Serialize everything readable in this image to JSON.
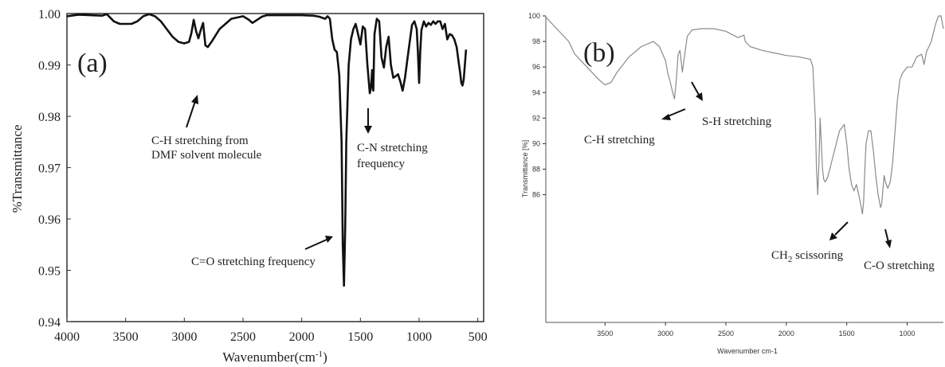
{
  "chart_data": [
    {
      "type": "line",
      "panel_label": "(a)",
      "xlabel": "Wavenumber(cm",
      "xlabel_sup": "-1",
      "xlabel_tail": ")",
      "ylabel": "%Transmittance",
      "xlim": [
        4000,
        450
      ],
      "ylim": [
        0.94,
        1.001
      ],
      "xticks": [
        {
          "v": 4000,
          "label": "4000"
        },
        {
          "v": 3500,
          "label": "3500"
        },
        {
          "v": 3000,
          "label": "3000"
        },
        {
          "v": 2500,
          "label": "2500"
        },
        {
          "v": 2000,
          "label": "2000"
        },
        {
          "v": 1500,
          "label": "1500"
        },
        {
          "v": 1000,
          "label": "1000"
        },
        {
          "v": 500,
          "label": "500"
        }
      ],
      "yticks": [
        {
          "v": 1.0,
          "label": "1.00"
        },
        {
          "v": 0.99,
          "label": "0.99"
        },
        {
          "v": 0.98,
          "label": "0.98"
        },
        {
          "v": 0.97,
          "label": "0.97"
        },
        {
          "v": 0.96,
          "label": "0.96"
        },
        {
          "v": 0.95,
          "label": "0.95"
        },
        {
          "v": 0.94,
          "label": "0.94"
        }
      ],
      "grid": false,
      "line_color": "#111111",
      "series": [
        {
          "x": [
            4000,
            3900,
            3800,
            3700,
            3660,
            3600,
            3550,
            3500,
            3450,
            3400,
            3350,
            3300,
            3250,
            3200,
            3150,
            3100,
            3050,
            3000,
            2960,
            2940,
            2920,
            2900,
            2880,
            2860,
            2840,
            2820,
            2800,
            2760,
            2700,
            2600,
            2500,
            2450,
            2420,
            2380,
            2340,
            2300,
            2200,
            2100,
            2000,
            1900,
            1850,
            1800,
            1780,
            1760,
            1740,
            1720,
            1700,
            1680,
            1660,
            1650,
            1640,
            1630,
            1620,
            1600,
            1580,
            1560,
            1540,
            1520,
            1500,
            1480,
            1460,
            1440,
            1420,
            1410,
            1400,
            1390,
            1380,
            1360,
            1340,
            1320,
            1300,
            1280,
            1260,
            1240,
            1220,
            1200,
            1180,
            1160,
            1140,
            1120,
            1100,
            1080,
            1060,
            1040,
            1020,
            1010,
            1000,
            990,
            980,
            960,
            940,
            920,
            900,
            880,
            860,
            840,
            820,
            800,
            780,
            760,
            740,
            720,
            700,
            680,
            660,
            650,
            640,
            630,
            620,
            600
          ],
          "y": [
            0.9995,
            0.9998,
            0.9997,
            0.9996,
            0.9999,
            0.9985,
            0.998,
            0.998,
            0.998,
            0.9985,
            0.9995,
            0.9999,
            0.9995,
            0.9985,
            0.997,
            0.9955,
            0.9945,
            0.9942,
            0.9945,
            0.9962,
            0.9988,
            0.9966,
            0.9952,
            0.9968,
            0.9982,
            0.9938,
            0.9935,
            0.9948,
            0.997,
            0.999,
            0.9995,
            0.9988,
            0.9982,
            0.9988,
            0.9994,
            0.9997,
            0.9997,
            0.9997,
            0.9997,
            0.9996,
            0.9994,
            0.999,
            0.9995,
            0.999,
            0.995,
            0.993,
            0.9925,
            0.988,
            0.975,
            0.955,
            0.947,
            0.958,
            0.975,
            0.99,
            0.995,
            0.997,
            0.998,
            0.996,
            0.994,
            0.9975,
            0.997,
            0.99,
            0.9845,
            0.9855,
            0.989,
            0.985,
            0.996,
            0.999,
            0.9985,
            0.9915,
            0.9895,
            0.9935,
            0.9955,
            0.99,
            0.9875,
            0.9878,
            0.9882,
            0.9868,
            0.985,
            0.9875,
            0.991,
            0.9945,
            0.9978,
            0.9985,
            0.997,
            0.9925,
            0.9865,
            0.9925,
            0.9968,
            0.9985,
            0.9975,
            0.9982,
            0.9978,
            0.9985,
            0.998,
            0.9985,
            0.9985,
            0.997,
            0.998,
            0.995,
            0.996,
            0.9958,
            0.995,
            0.9935,
            0.99,
            0.9885,
            0.9865,
            0.986,
            0.9872,
            0.993
          ]
        }
      ],
      "annotations": [
        {
          "lines": [
            "C-H stretching from",
            "DMF solvent molecule"
          ]
        },
        {
          "lines": [
            "C-N stretching",
            "frequency"
          ]
        },
        {
          "lines": [
            "C=O stretching frequency"
          ]
        }
      ]
    },
    {
      "type": "line",
      "panel_label": "(b)",
      "xlabel": "Wavenumber cm-1",
      "ylabel": "Transmittance [%]",
      "xlim": [
        3990,
        700
      ],
      "ylim": [
        76,
        100
      ],
      "xticks": [
        {
          "v": 3500,
          "label": "3500"
        },
        {
          "v": 3000,
          "label": "3000"
        },
        {
          "v": 2500,
          "label": "2500"
        },
        {
          "v": 2000,
          "label": "2000"
        },
        {
          "v": 1500,
          "label": "1500"
        },
        {
          "v": 1000,
          "label": "1000"
        }
      ],
      "yticks": [
        {
          "v": 100,
          "label": "100"
        },
        {
          "v": 98,
          "label": "98"
        },
        {
          "v": 96,
          "label": "96"
        },
        {
          "v": 94,
          "label": "94"
        },
        {
          "v": 92,
          "label": "92"
        },
        {
          "v": 90,
          "label": "90"
        },
        {
          "v": 88,
          "label": "88"
        },
        {
          "v": 86,
          "label": "86"
        }
      ],
      "grid": false,
      "line_color": "#888888",
      "series": [
        {
          "x": [
            3990,
            3900,
            3800,
            3750,
            3700,
            3650,
            3600,
            3550,
            3500,
            3450,
            3400,
            3300,
            3200,
            3100,
            3050,
            3000,
            2980,
            2960,
            2940,
            2925,
            2910,
            2895,
            2880,
            2860,
            2840,
            2820,
            2780,
            2700,
            2600,
            2500,
            2400,
            2350,
            2340,
            2300,
            2200,
            2100,
            2000,
            1900,
            1800,
            1780,
            1760,
            1750,
            1740,
            1730,
            1720,
            1710,
            1700,
            1690,
            1680,
            1660,
            1640,
            1600,
            1560,
            1520,
            1500,
            1480,
            1460,
            1440,
            1420,
            1400,
            1380,
            1370,
            1360,
            1350,
            1340,
            1320,
            1300,
            1280,
            1260,
            1240,
            1230,
            1220,
            1210,
            1200,
            1190,
            1180,
            1160,
            1140,
            1120,
            1100,
            1080,
            1060,
            1040,
            1000,
            960,
            920,
            880,
            860,
            840,
            820,
            800,
            780,
            760,
            740,
            720,
            700
          ],
          "y": [
            99.9,
            99.0,
            98.0,
            97.0,
            96.5,
            96.0,
            95.5,
            95.0,
            94.6,
            94.8,
            95.6,
            96.8,
            97.6,
            98.0,
            97.6,
            96.5,
            95.5,
            94.8,
            94.0,
            93.5,
            95.0,
            97.0,
            97.3,
            95.6,
            97.0,
            98.4,
            98.9,
            99.0,
            99.0,
            98.8,
            98.3,
            98.5,
            98.0,
            97.6,
            97.3,
            97.1,
            96.9,
            96.8,
            96.6,
            96.0,
            92.0,
            88.0,
            86.0,
            88.5,
            92.0,
            90.0,
            88.0,
            87.2,
            87.0,
            87.3,
            88.0,
            89.5,
            91.0,
            91.5,
            90.0,
            88.0,
            86.8,
            86.3,
            86.8,
            86.0,
            85.0,
            84.5,
            85.5,
            88.0,
            90.0,
            91.0,
            91.0,
            89.5,
            87.5,
            86.0,
            85.5,
            85.0,
            85.3,
            86.5,
            87.5,
            87.0,
            86.5,
            87.0,
            88.5,
            91.0,
            93.5,
            95.0,
            95.5,
            96.0,
            96.0,
            96.8,
            97.0,
            96.2,
            97.2,
            97.6,
            98.0,
            98.8,
            99.5,
            100.0,
            100.0,
            99.0
          ]
        }
      ],
      "annotations": [
        {
          "lines": [
            "C-H stretching"
          ]
        },
        {
          "lines": [
            "S-H stretching"
          ]
        },
        {
          "lines": [
            "CH",
            "2",
            " scissoring"
          ]
        },
        {
          "lines": [
            "C-O stretching"
          ]
        }
      ]
    }
  ]
}
